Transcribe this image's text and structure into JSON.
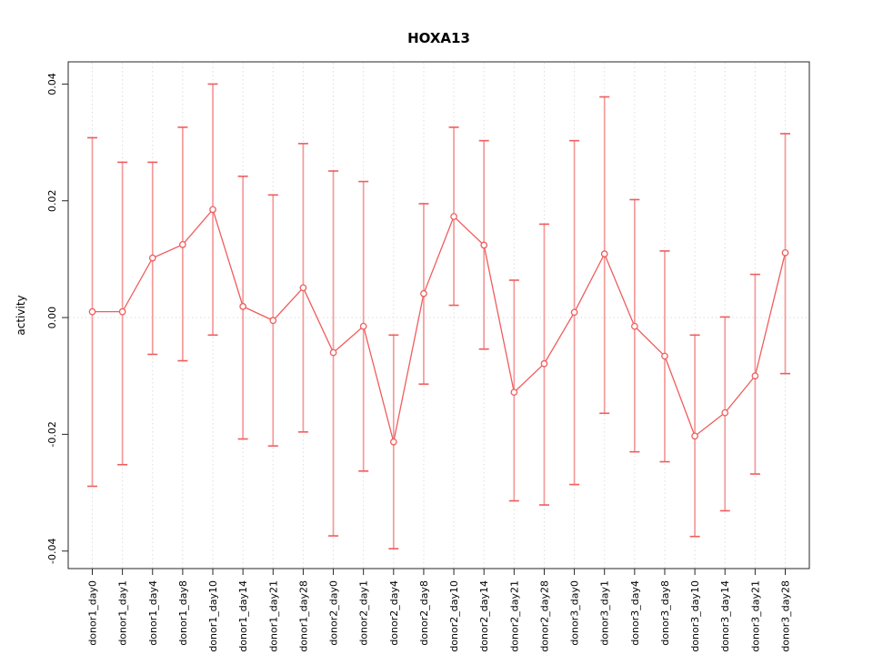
{
  "title": "HOXA13",
  "ylabel": "activity",
  "chart_data": {
    "type": "line",
    "title": "HOXA13",
    "xlabel": "",
    "ylabel": "activity",
    "legend_position": "none",
    "grid": "vertical dotted gridline at each category; dotted horizontal line at y=0",
    "marker": "open-circle",
    "error_bars": true,
    "ylim": [
      -0.043,
      0.0438
    ],
    "yticks": [
      -0.04,
      -0.02,
      0,
      0.02,
      0.04
    ],
    "ytick_labels": [
      "-0.04",
      "-0.02",
      "0.00",
      "0.02",
      "0.04"
    ],
    "categories": [
      "donor1_day0",
      "donor1_day1",
      "donor1_day4",
      "donor1_day8",
      "donor1_day10",
      "donor1_day14",
      "donor1_day21",
      "donor1_day28",
      "donor2_day0",
      "donor2_day1",
      "donor2_day4",
      "donor2_day8",
      "donor2_day10",
      "donor2_day14",
      "donor2_day21",
      "donor2_day28",
      "donor3_day0",
      "donor3_day1",
      "donor3_day4",
      "donor3_day8",
      "donor3_day10",
      "donor3_day14",
      "donor3_day21",
      "donor3_day28"
    ],
    "series": [
      {
        "name": "activity",
        "values": [
          0.001,
          0.001,
          0.0102,
          0.0125,
          0.0185,
          0.0019,
          -0.0005,
          0.0051,
          -0.006,
          -0.0015,
          -0.0213,
          0.0041,
          0.0173,
          0.0124,
          -0.0128,
          -0.0079,
          0.0009,
          0.0109,
          -0.0015,
          -0.0066,
          -0.0203,
          -0.0163,
          -0.01,
          0.0111
        ],
        "error_high": [
          0.0308,
          0.0266,
          0.0266,
          0.0326,
          0.04,
          0.0242,
          0.021,
          0.0298,
          0.0251,
          0.0233,
          -0.003,
          0.0195,
          0.0326,
          0.0303,
          0.0064,
          0.016,
          0.0303,
          0.0378,
          0.0202,
          0.0114,
          -0.003,
          0.0001,
          0.0074,
          0.0315
        ],
        "error_low": [
          -0.0289,
          -0.0252,
          -0.0063,
          -0.0074,
          -0.003,
          -0.0208,
          -0.022,
          -0.0196,
          -0.0374,
          -0.0263,
          -0.0396,
          -0.0114,
          0.0021,
          -0.0054,
          -0.0314,
          -0.0321,
          -0.0286,
          -0.0164,
          -0.023,
          -0.0247,
          -0.0375,
          -0.0331,
          -0.0268,
          -0.0096
        ]
      }
    ],
    "colors": {
      "series": "#ef5d5d",
      "error_stem": "#f49a9a",
      "error_cap": "#ef5d5d",
      "gridline": "#dedede",
      "zero_line": "#dcdcdc",
      "axis": "#262626",
      "background": "#ffffff"
    }
  }
}
